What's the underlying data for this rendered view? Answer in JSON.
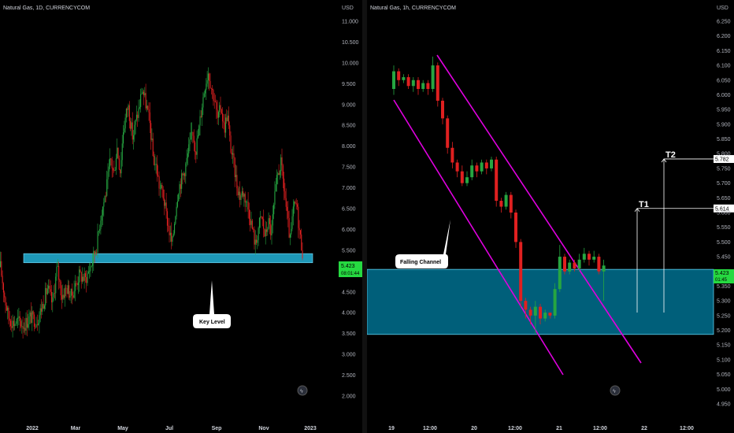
{
  "chart_data": [
    {
      "type": "candlestick",
      "title": "Natural Gas, 1D, CURRENCYCOM",
      "currency": "USD",
      "y_ticks": [
        "11.000",
        "10.500",
        "10.000",
        "9.500",
        "9.000",
        "8.500",
        "8.000",
        "7.500",
        "7.000",
        "6.500",
        "6.000",
        "5.500",
        "5.000",
        "4.500",
        "4.000",
        "3.500",
        "3.000",
        "2.500",
        "2.000"
      ],
      "x_ticks": [
        "2022",
        "Mar",
        "May",
        "Jul",
        "Sep",
        "Nov",
        "2023"
      ],
      "ylim": [
        2.0,
        11.0
      ],
      "last_price": "5.423",
      "countdown": "08:01:44",
      "key_level_zone": [
        5.2,
        5.42
      ],
      "callout": "Key Level",
      "up_color": "#26a641",
      "down_color": "#e02020",
      "zone_color": "#1e98b8",
      "path": [
        [
          0,
          5.1
        ],
        [
          6,
          4.3
        ],
        [
          10,
          3.9
        ],
        [
          16,
          3.75
        ],
        [
          22,
          3.8
        ],
        [
          30,
          3.7
        ],
        [
          38,
          3.9
        ],
        [
          46,
          3.8
        ],
        [
          52,
          4.1
        ],
        [
          60,
          4.6
        ],
        [
          66,
          4.2
        ],
        [
          72,
          5.1
        ],
        [
          78,
          4.4
        ],
        [
          84,
          4.6
        ],
        [
          90,
          4.4
        ],
        [
          96,
          4.7
        ],
        [
          100,
          4.9
        ],
        [
          108,
          4.8
        ],
        [
          116,
          5.2
        ],
        [
          122,
          5.6
        ],
        [
          128,
          6.4
        ],
        [
          134,
          6.9
        ],
        [
          140,
          7.7
        ],
        [
          144,
          7.3
        ],
        [
          148,
          8.0
        ],
        [
          152,
          7.4
        ],
        [
          156,
          8.4
        ],
        [
          162,
          9.0
        ],
        [
          168,
          8.2
        ],
        [
          172,
          8.6
        ],
        [
          176,
          8.9
        ],
        [
          180,
          9.4
        ],
        [
          186,
          8.9
        ],
        [
          190,
          8.5
        ],
        [
          194,
          7.7
        ],
        [
          198,
          7.5
        ],
        [
          202,
          7.0
        ],
        [
          206,
          6.9
        ],
        [
          210,
          6.4
        ],
        [
          214,
          6.0
        ],
        [
          218,
          5.6
        ],
        [
          222,
          6.4
        ],
        [
          226,
          7.0
        ],
        [
          232,
          7.3
        ],
        [
          236,
          7.6
        ],
        [
          240,
          8.0
        ],
        [
          244,
          8.4
        ],
        [
          248,
          7.9
        ],
        [
          252,
          8.4
        ],
        [
          256,
          9.0
        ],
        [
          260,
          9.5
        ],
        [
          264,
          9.8
        ],
        [
          268,
          9.4
        ],
        [
          272,
          9.1
        ],
        [
          276,
          8.6
        ],
        [
          280,
          9.0
        ],
        [
          284,
          8.4
        ],
        [
          288,
          8.8
        ],
        [
          292,
          8.0
        ],
        [
          296,
          7.6
        ],
        [
          300,
          7.1
        ],
        [
          304,
          6.8
        ],
        [
          308,
          6.9
        ],
        [
          312,
          6.7
        ],
        [
          316,
          6.4
        ],
        [
          320,
          6.0
        ],
        [
          324,
          5.6
        ],
        [
          328,
          6.1
        ],
        [
          332,
          6.3
        ],
        [
          336,
          5.8
        ],
        [
          340,
          6.2
        ],
        [
          344,
          5.9
        ],
        [
          348,
          6.7
        ],
        [
          352,
          7.3
        ],
        [
          356,
          7.6
        ],
        [
          360,
          7.0
        ],
        [
          364,
          6.3
        ],
        [
          368,
          5.7
        ],
        [
          372,
          6.5
        ],
        [
          376,
          6.6
        ],
        [
          380,
          5.9
        ],
        [
          384,
          5.42
        ]
      ]
    },
    {
      "type": "candlestick",
      "title": "Natural Gas, 1h, CURRENCYCOM",
      "currency": "USD",
      "y_ticks": [
        "6.250",
        "6.200",
        "6.150",
        "6.100",
        "6.050",
        "6.000",
        "5.950",
        "5.900",
        "5.850",
        "5.800",
        "5.750",
        "5.700",
        "5.650",
        "5.600",
        "5.550",
        "5.500",
        "5.450",
        "5.400",
        "5.350",
        "5.300",
        "5.250",
        "5.200",
        "5.150",
        "5.100",
        "5.050",
        "5.000",
        "4.950"
      ],
      "x_ticks": [
        "19",
        "12:00",
        "20",
        "12:00",
        "21",
        "12:00",
        "22",
        "12:00"
      ],
      "ylim": [
        4.95,
        6.25
      ],
      "last_price": "5.423",
      "countdown": "01:45",
      "targets": [
        {
          "label": "T1",
          "price": "5.614",
          "value": 5.614
        },
        {
          "label": "T2",
          "price": "5.782",
          "value": 5.782
        }
      ],
      "zone": [
        5.186,
        5.407
      ],
      "channel_label": "Falling Channel",
      "up_color": "#26a641",
      "down_color": "#e02020",
      "channel_color": "#e000e0",
      "zone_color": "#005f7a",
      "candles": [
        [
          6.02,
          6.08,
          6.1,
          6.0
        ],
        [
          6.08,
          6.05,
          6.09,
          6.03
        ],
        [
          6.05,
          6.06,
          6.07,
          6.04
        ],
        [
          6.06,
          6.03,
          6.07,
          6.02
        ],
        [
          6.03,
          6.05,
          6.06,
          6.01
        ],
        [
          6.05,
          6.02,
          6.06,
          6.0
        ],
        [
          6.02,
          6.04,
          6.05,
          6.01
        ],
        [
          6.04,
          6.02,
          6.05,
          6.0
        ],
        [
          6.02,
          6.1,
          6.13,
          6.01
        ],
        [
          6.1,
          5.98,
          6.11,
          5.96
        ],
        [
          5.98,
          5.92,
          5.99,
          5.9
        ],
        [
          5.92,
          5.82,
          5.93,
          5.8
        ],
        [
          5.82,
          5.77,
          5.84,
          5.75
        ],
        [
          5.77,
          5.74,
          5.78,
          5.72
        ],
        [
          5.74,
          5.7,
          5.76,
          5.69
        ],
        [
          5.7,
          5.72,
          5.74,
          5.69
        ],
        [
          5.72,
          5.76,
          5.78,
          5.71
        ],
        [
          5.76,
          5.74,
          5.77,
          5.72
        ],
        [
          5.74,
          5.77,
          5.78,
          5.73
        ],
        [
          5.77,
          5.75,
          5.78,
          5.73
        ],
        [
          5.75,
          5.78,
          5.79,
          5.74
        ],
        [
          5.78,
          5.64,
          5.79,
          5.62
        ],
        [
          5.64,
          5.62,
          5.65,
          5.6
        ],
        [
          5.62,
          5.66,
          5.67,
          5.61
        ],
        [
          5.66,
          5.6,
          5.67,
          5.58
        ],
        [
          5.6,
          5.5,
          5.61,
          5.48
        ],
        [
          5.5,
          5.3,
          5.51,
          5.28
        ],
        [
          5.3,
          5.27,
          5.31,
          5.24
        ],
        [
          5.27,
          5.25,
          5.28,
          5.22
        ],
        [
          5.25,
          5.28,
          5.3,
          5.19
        ],
        [
          5.28,
          5.24,
          5.29,
          5.22
        ],
        [
          5.24,
          5.26,
          5.27,
          5.23
        ],
        [
          5.26,
          5.25,
          5.26,
          5.24
        ],
        [
          5.25,
          5.34,
          5.36,
          5.24
        ],
        [
          5.34,
          5.45,
          5.49,
          5.33
        ],
        [
          5.45,
          5.4,
          5.46,
          5.39
        ],
        [
          5.4,
          5.43,
          5.44,
          5.39
        ],
        [
          5.43,
          5.41,
          5.44,
          5.4
        ],
        [
          5.41,
          5.44,
          5.46,
          5.4
        ],
        [
          5.44,
          5.46,
          5.48,
          5.43
        ],
        [
          5.46,
          5.44,
          5.47,
          5.42
        ],
        [
          5.44,
          5.45,
          5.47,
          5.43
        ],
        [
          5.45,
          5.4,
          5.46,
          5.39
        ],
        [
          5.4,
          5.42,
          5.44,
          5.3
        ]
      ]
    }
  ]
}
